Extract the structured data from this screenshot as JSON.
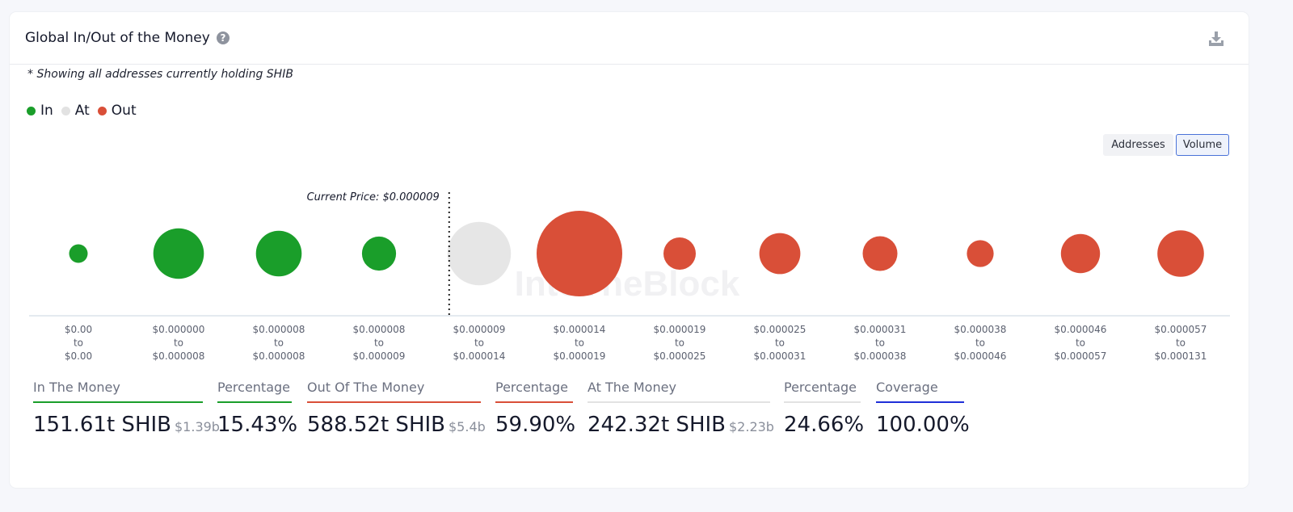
{
  "header": {
    "title": "Global In/Out of the Money",
    "help_icon": "question-circle-icon",
    "download_icon": "download-icon"
  },
  "note": "* Showing all addresses currently holding SHIB",
  "legend": [
    {
      "label": "In",
      "color": "#1a9e2a"
    },
    {
      "label": "At",
      "color": "#e2e2e2"
    },
    {
      "label": "Out",
      "color": "#d94f38"
    }
  ],
  "toggles": {
    "addresses": "Addresses",
    "volume": "Volume",
    "selected": "Volume"
  },
  "chart_data": {
    "type": "bubble",
    "title": "Global In/Out of the Money",
    "current_price_label": "Current Price: $0.000009",
    "current_price_position_index": 3.7,
    "watermark": "IntoTheBlock",
    "size_metric": "Volume (relative)",
    "categories": [
      [
        "$0.00",
        "to",
        "$0.00"
      ],
      [
        "$0.000000",
        "to",
        "$0.000008"
      ],
      [
        "$0.000008",
        "to",
        "$0.000008"
      ],
      [
        "$0.000008",
        "to",
        "$0.000009"
      ],
      [
        "$0.000009",
        "to",
        "$0.000014"
      ],
      [
        "$0.000014",
        "to",
        "$0.000019"
      ],
      [
        "$0.000019",
        "to",
        "$0.000025"
      ],
      [
        "$0.000025",
        "to",
        "$0.000031"
      ],
      [
        "$0.000031",
        "to",
        "$0.000038"
      ],
      [
        "$0.000038",
        "to",
        "$0.000046"
      ],
      [
        "$0.000046",
        "to",
        "$0.000057"
      ],
      [
        "$0.000057",
        "to",
        "$0.000131"
      ]
    ],
    "status": [
      "in",
      "in",
      "in",
      "in",
      "at",
      "out",
      "out",
      "out",
      "out",
      "out",
      "out",
      "out"
    ],
    "values": [
      8.6,
      64,
      52,
      29,
      100,
      183,
      26,
      42,
      30,
      18,
      38,
      54
    ]
  },
  "stats": [
    {
      "label": "In The Money",
      "value": "151.61t SHIB",
      "sub": "$1.39b",
      "color": "#1a9e2a"
    },
    {
      "label": "Percentage",
      "value": "15.43%",
      "sub": "",
      "color": "#1a9e2a"
    },
    {
      "label": "Out Of The Money",
      "value": "588.52t SHIB",
      "sub": "$5.4b",
      "color": "#d94f38"
    },
    {
      "label": "Percentage",
      "value": "59.90%",
      "sub": "",
      "color": "#d94f38"
    },
    {
      "label": "At The Money",
      "value": "242.32t SHIB",
      "sub": "$2.23b",
      "color": "#e2e2e2"
    },
    {
      "label": "Percentage",
      "value": "24.66%",
      "sub": "",
      "color": "#e2e2e2"
    },
    {
      "label": "Coverage",
      "value": "100.00%",
      "sub": "",
      "color": "#1f2fd8"
    }
  ]
}
